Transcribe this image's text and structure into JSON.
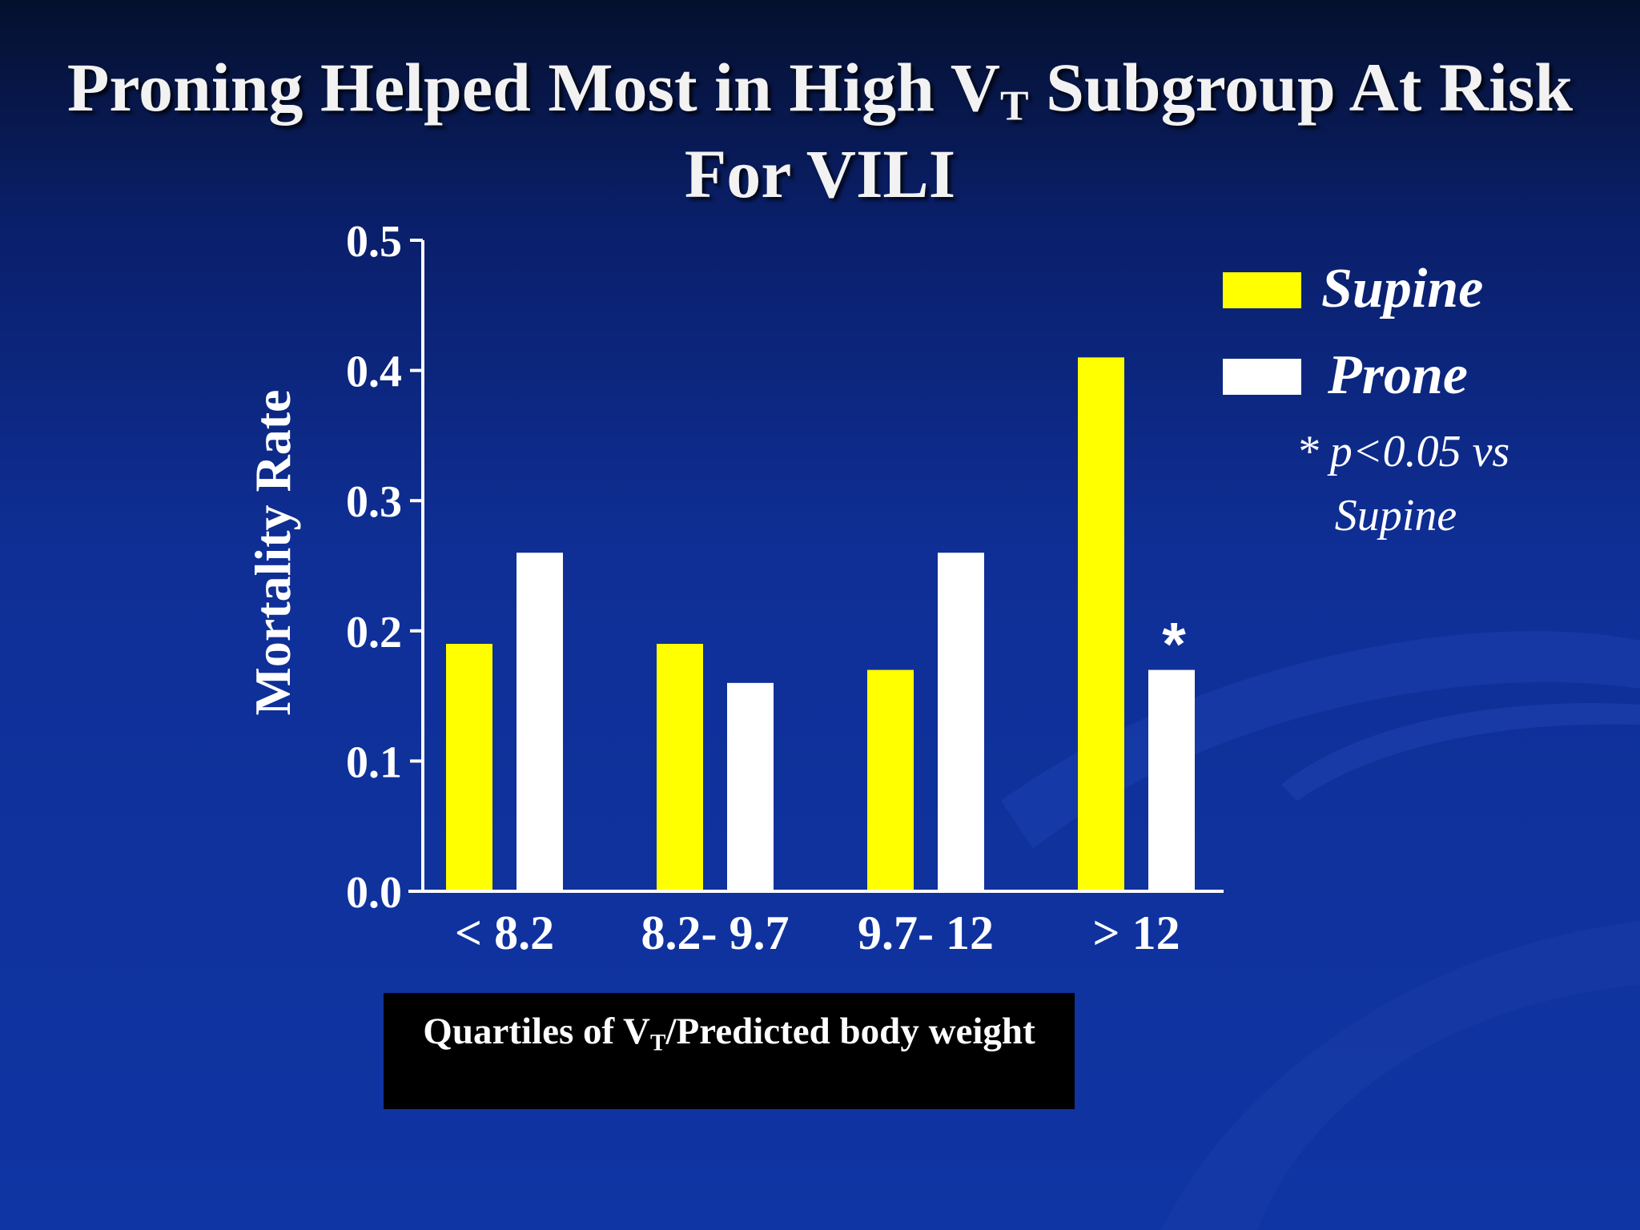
{
  "slide": {
    "title_pre": "Proning Helped Most in High V",
    "title_sub": "T",
    "title_post": " Subgroup At Risk For VILI"
  },
  "chart_data": {
    "type": "bar",
    "categories": [
      "< 8.2",
      "8.2- 9.7",
      "9.7- 12",
      "> 12"
    ],
    "series": [
      {
        "name": "Supine",
        "values": [
          0.19,
          0.19,
          0.17,
          0.41
        ],
        "color": "#ffff00"
      },
      {
        "name": "Prone",
        "values": [
          0.26,
          0.16,
          0.26,
          0.17
        ],
        "color": "#ffffff"
      }
    ],
    "ylabel": "Mortality Rate",
    "ylim": [
      0,
      0.5
    ],
    "yticks": [
      "0.0",
      "0.1",
      "0.2",
      "0.3",
      "0.4",
      "0.5"
    ],
    "xlabel": {
      "pre": "Quartiles of V",
      "sub": "T",
      "post": "/Predicted body weight"
    },
    "annotations": [
      {
        "text": "*",
        "category": "> 12",
        "series": "Prone"
      }
    ],
    "note": {
      "line1": "* p<0.05 vs",
      "line2": "Supine"
    },
    "legend_position": "top-right",
    "grid": false
  }
}
